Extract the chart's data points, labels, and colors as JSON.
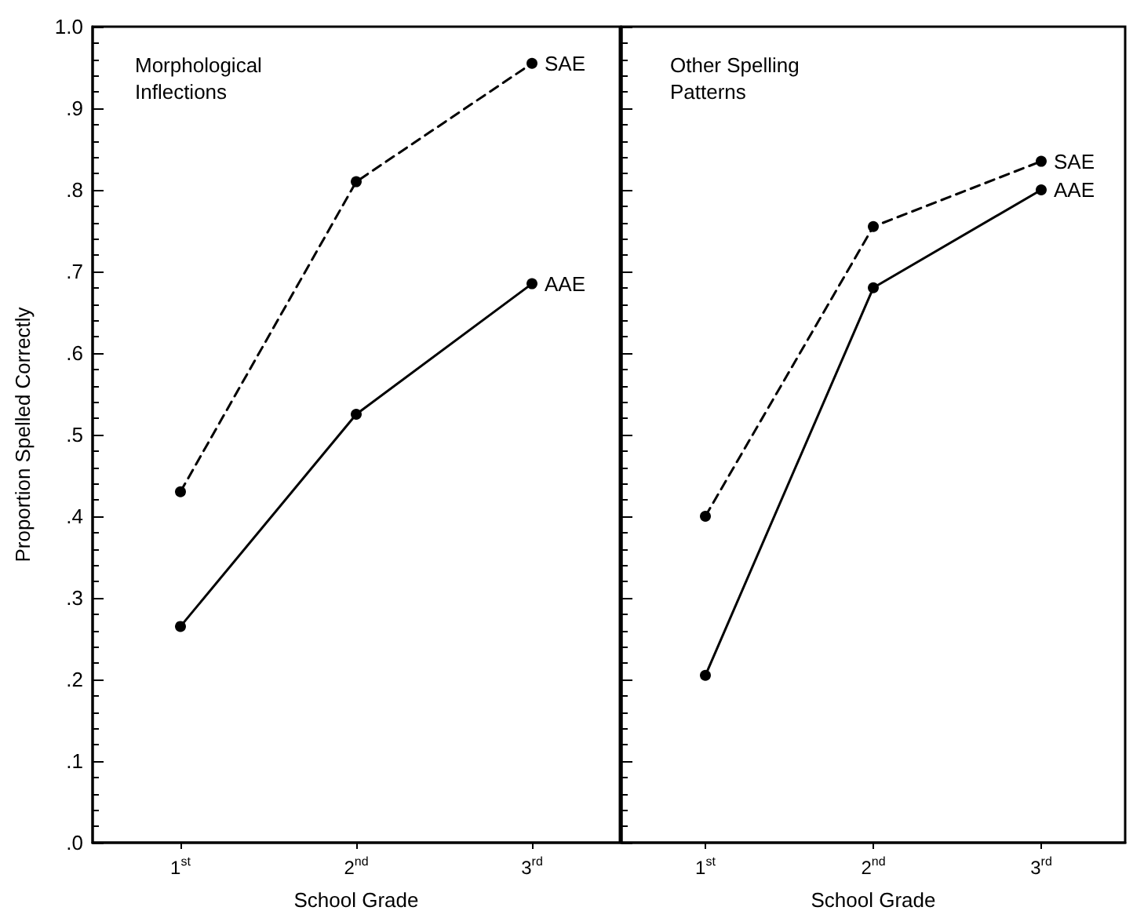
{
  "chart_data": [
    {
      "type": "line",
      "title": "Morphological Inflections",
      "xlabel": "School Grade",
      "ylabel": "Proportion Spelled Correctly",
      "categories": [
        "1$^{st}$",
        "2$^{nd}$",
        "3$^{rd}$"
      ],
      "series": [
        {
          "name": "SAE",
          "color": "#000000",
          "line_style": "dashed",
          "values": [
            0.43,
            0.81,
            0.955
          ]
        },
        {
          "name": "AAE",
          "color": "#000000",
          "line_style": "solid",
          "values": [
            0.265,
            0.525,
            0.685
          ]
        }
      ],
      "ylim": [
        0,
        1
      ],
      "yticks": [
        {
          "value": 0,
          "label": ".0"
        },
        {
          "value": 0.1,
          "label": ".1"
        },
        {
          "value": 0.2,
          "label": ".2"
        },
        {
          "value": 0.3,
          "label": ".3"
        },
        {
          "value": 0.4,
          "label": ".4"
        },
        {
          "value": 0.5,
          "label": ".5"
        },
        {
          "value": 0.6,
          "label": ".6"
        },
        {
          "value": 0.7,
          "label": ".7"
        },
        {
          "value": 0.8,
          "label": ".8"
        },
        {
          "value": 0.9,
          "label": ".9"
        },
        {
          "value": 1,
          "label": "1.0"
        }
      ],
      "grid": false,
      "legend": false,
      "marker": "circle"
    },
    {
      "type": "line",
      "title": "Other Spelling Patterns",
      "xlabel": "School Grade",
      "categories": [
        "1$^{st}$",
        "2$^{nd}$",
        "3$^{rd}$"
      ],
      "series": [
        {
          "name": "SAE",
          "color": "#000000",
          "line_style": "dashed",
          "values": [
            0.4,
            0.755,
            0.835
          ]
        },
        {
          "name": "AAE",
          "color": "#000000",
          "line_style": "solid",
          "values": [
            0.205,
            0.68,
            0.8
          ]
        }
      ],
      "ylim": [
        0,
        1
      ],
      "yticks": [
        {
          "value": 0,
          "label": null
        },
        {
          "value": 0.1,
          "label": null
        },
        {
          "value": 0.2,
          "label": null
        },
        {
          "value": 0.3,
          "label": null
        },
        {
          "value": 0.4,
          "label": null
        },
        {
          "value": 0.5,
          "label": null
        },
        {
          "value": 0.6,
          "label": null
        },
        {
          "value": 0.7,
          "label": null
        },
        {
          "value": 0.8,
          "label": null
        },
        {
          "value": 0.9,
          "label": null
        },
        {
          "value": 1,
          "label": null
        }
      ],
      "tick_labels": "x",
      "grid": false,
      "legend": false,
      "marker": "circle"
    }
  ]
}
